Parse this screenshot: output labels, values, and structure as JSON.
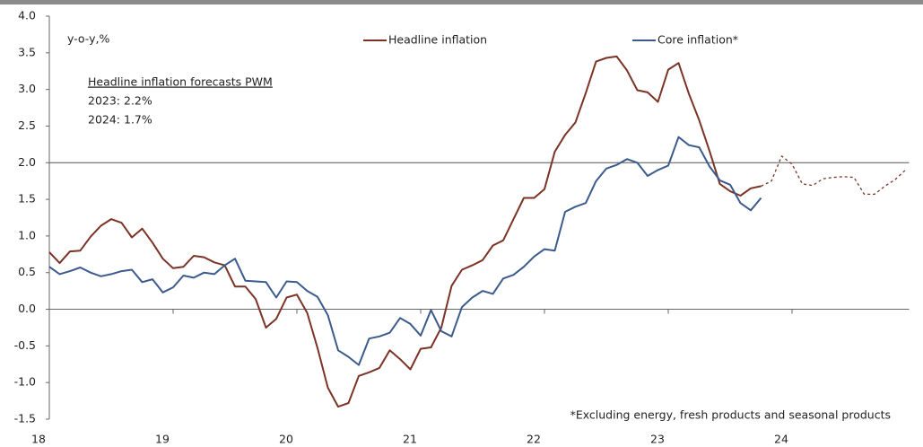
{
  "chart_data": {
    "type": "line",
    "annotations": [
      "y-o-y,%",
      "Headline inflation forecasts PWM",
      "2023: 2.2%",
      "2024: 1.7%",
      "*Excluding energy, fresh products and seasonal products"
    ],
    "categories": [
      "18",
      null,
      null,
      null,
      null,
      null,
      null,
      null,
      null,
      null,
      null,
      null,
      "19",
      null,
      null,
      null,
      null,
      null,
      null,
      null,
      null,
      null,
      null,
      null,
      "20",
      null,
      null,
      null,
      null,
      null,
      null,
      null,
      null,
      null,
      null,
      null,
      "21",
      null,
      null,
      null,
      null,
      null,
      null,
      null,
      null,
      null,
      null,
      null,
      "22",
      null,
      null,
      null,
      null,
      null,
      null,
      null,
      null,
      null,
      null,
      null,
      "23",
      null,
      null,
      null,
      null,
      null,
      null,
      null,
      null,
      null,
      null,
      null,
      "24",
      null,
      null,
      null,
      null,
      null,
      null,
      null,
      null,
      null,
      null,
      null
    ],
    "series": [
      {
        "name": "Headline inflation",
        "color": "#7b3326",
        "dashed": false,
        "values": [
          0.78,
          0.63,
          0.79,
          0.8,
          0.99,
          1.14,
          1.23,
          1.18,
          0.98,
          1.1,
          0.91,
          0.69,
          0.56,
          0.58,
          0.73,
          0.71,
          0.64,
          0.6,
          0.31,
          0.31,
          0.14,
          -0.25,
          -0.13,
          0.16,
          0.2,
          -0.05,
          -0.53,
          -1.07,
          -1.33,
          -1.28,
          -0.91,
          -0.86,
          -0.8,
          -0.56,
          -0.68,
          -0.82,
          -0.54,
          -0.52,
          -0.25,
          0.32,
          0.54,
          0.6,
          0.67,
          0.87,
          0.94,
          1.23,
          1.52,
          1.52,
          1.64,
          2.15,
          2.38,
          2.55,
          2.95,
          3.38,
          3.43,
          3.45,
          3.26,
          2.99,
          2.96,
          2.83,
          3.27,
          3.36,
          2.94,
          2.58,
          2.16,
          1.71,
          1.61,
          1.55,
          1.65,
          1.68,
          null,
          null,
          null,
          null,
          null,
          null,
          null,
          null,
          null,
          null,
          null,
          null,
          null,
          null
        ]
      },
      {
        "name": "Core inflation*",
        "color": "#3b5b8c",
        "dashed": false,
        "values": [
          0.58,
          0.48,
          0.52,
          0.57,
          0.5,
          0.45,
          0.48,
          0.52,
          0.54,
          0.37,
          0.41,
          0.23,
          0.3,
          0.46,
          0.43,
          0.5,
          0.48,
          0.6,
          0.69,
          0.39,
          0.38,
          0.37,
          0.16,
          0.38,
          0.37,
          0.25,
          0.17,
          -0.08,
          -0.56,
          -0.65,
          -0.76,
          -0.4,
          -0.37,
          -0.32,
          -0.12,
          -0.2,
          -0.36,
          -0.01,
          -0.3,
          -0.37,
          0.03,
          0.16,
          0.25,
          0.21,
          0.42,
          0.47,
          0.58,
          0.72,
          0.82,
          0.8,
          1.33,
          1.4,
          1.45,
          1.75,
          1.92,
          1.97,
          2.05,
          2.0,
          1.82,
          1.9,
          1.96,
          2.35,
          2.24,
          2.21,
          1.95,
          1.76,
          1.7,
          1.45,
          1.35,
          1.52,
          null,
          null,
          null,
          null,
          null,
          null,
          null,
          null,
          null,
          null,
          null,
          null,
          null,
          null
        ]
      },
      {
        "color": "#7b3326",
        "dashed": true,
        "values": [
          null,
          null,
          null,
          null,
          null,
          null,
          null,
          null,
          null,
          null,
          null,
          null,
          null,
          null,
          null,
          null,
          null,
          null,
          null,
          null,
          null,
          null,
          null,
          null,
          null,
          null,
          null,
          null,
          null,
          null,
          null,
          null,
          null,
          null,
          null,
          null,
          null,
          null,
          null,
          null,
          null,
          null,
          null,
          null,
          null,
          null,
          null,
          null,
          null,
          null,
          null,
          null,
          null,
          null,
          null,
          null,
          null,
          null,
          null,
          null,
          null,
          null,
          null,
          null,
          null,
          null,
          null,
          null,
          null,
          1.68,
          1.75,
          2.09,
          1.98,
          1.71,
          1.69,
          1.78,
          1.8,
          1.81,
          1.8,
          1.57,
          1.57,
          1.68,
          1.77,
          1.9
        ]
      }
    ],
    "reference_line": 2.0,
    "ylim": [
      -1.5,
      4.0
    ],
    "yticks": [
      {
        "value": -1.5,
        "label": "-1.5"
      },
      {
        "value": -1.0,
        "label": "-1.0"
      },
      {
        "value": -0.5,
        "label": "-0.5"
      },
      {
        "value": 0,
        "label": "0.0"
      },
      {
        "value": 0.5,
        "label": "0.5"
      },
      {
        "value": 1.0,
        "label": "1.0"
      },
      {
        "value": 1.5,
        "label": "1.5"
      },
      {
        "value": 2.0,
        "label": "2.0"
      },
      {
        "value": 2.5,
        "label": "2.5"
      },
      {
        "value": 3.0,
        "label": "3.0"
      },
      {
        "value": 3.5,
        "label": "3.5"
      },
      {
        "value": 4.0,
        "label": "4.0"
      }
    ]
  }
}
